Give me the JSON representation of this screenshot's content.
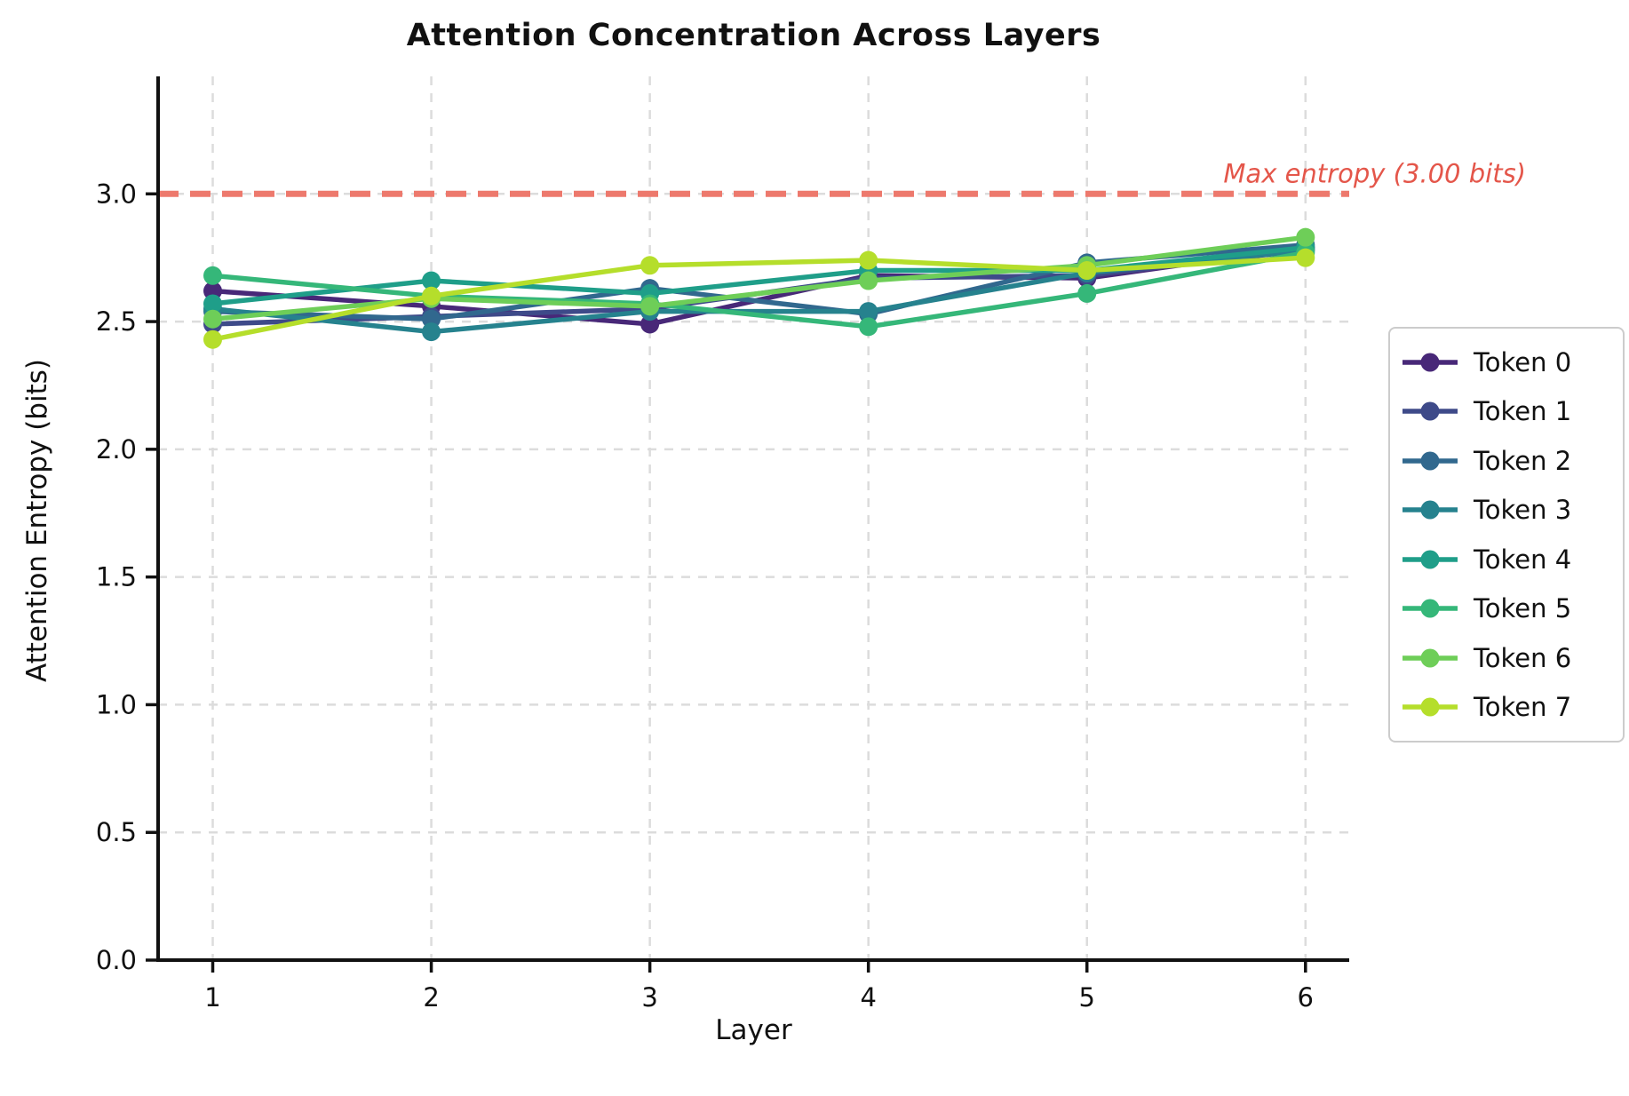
{
  "chart_data": {
    "type": "line",
    "title": "Attention Concentration Across Layers",
    "xlabel": "Layer",
    "ylabel": "Attention Entropy (bits)",
    "x": [
      1,
      2,
      3,
      4,
      5,
      6
    ],
    "xticks": [
      1,
      2,
      3,
      4,
      5,
      6
    ],
    "yticks": [
      0.0,
      0.5,
      1.0,
      1.5,
      2.0,
      2.5,
      3.0
    ],
    "xlim": [
      0.75,
      6.2
    ],
    "ylim": [
      0,
      3.46
    ],
    "grid": true,
    "grid_style": "dashed",
    "legend_position": "outside-right",
    "series": [
      {
        "name": "Token 0",
        "color": "#482878",
        "values": [
          2.62,
          2.56,
          2.49,
          2.68,
          2.67,
          2.79
        ]
      },
      {
        "name": "Token 1",
        "color": "#3e4a89",
        "values": [
          2.49,
          2.52,
          2.55,
          2.67,
          2.68,
          2.78
        ]
      },
      {
        "name": "Token 2",
        "color": "#31688e",
        "values": [
          2.54,
          2.51,
          2.63,
          2.53,
          2.73,
          2.8
        ]
      },
      {
        "name": "Token 3",
        "color": "#26828e",
        "values": [
          2.55,
          2.46,
          2.54,
          2.54,
          2.69,
          2.78
        ]
      },
      {
        "name": "Token 4",
        "color": "#1f9e89",
        "values": [
          2.57,
          2.66,
          2.61,
          2.7,
          2.7,
          2.79
        ]
      },
      {
        "name": "Token 5",
        "color": "#35b779",
        "values": [
          2.68,
          2.6,
          2.57,
          2.48,
          2.61,
          2.77
        ]
      },
      {
        "name": "Token 6",
        "color": "#6ece58",
        "values": [
          2.51,
          2.59,
          2.56,
          2.66,
          2.72,
          2.83
        ]
      },
      {
        "name": "Token 7",
        "color": "#b5de2b",
        "values": [
          2.43,
          2.6,
          2.72,
          2.74,
          2.7,
          2.75
        ]
      }
    ],
    "reference_line": {
      "value": 3.0,
      "label": "Max entropy (3.00 bits)",
      "line_color": "#ed796d",
      "text_color": "#e4564a"
    }
  },
  "colors": {
    "grid": "#dcdcdc",
    "spine": "#111111",
    "tick_text": "#111111",
    "background": "#ffffff",
    "legend_border": "#cccccc"
  }
}
